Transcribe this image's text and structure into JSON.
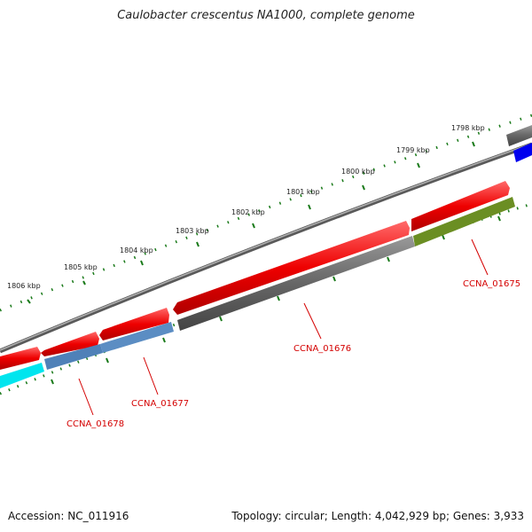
{
  "title": "Caulobacter crescentus NA1000, complete genome",
  "footer": {
    "accession": "Accession: NC_011916",
    "summary": "Topology: circular; Length: 4,042,929 bp; Genes: 3,933"
  },
  "ruler_labels": [
    "1798 kbp",
    "1799 kbp",
    "1800 kbp",
    "1801 kbp",
    "1802 kbp",
    "1803 kbp",
    "1804 kbp",
    "1805 kbp",
    "1806 kbp"
  ],
  "gene_labels": [
    "CCNA_01675",
    "CCNA_01676",
    "CCNA_01677",
    "CCNA_01678"
  ],
  "colors": {
    "forward_cds": "#ee0000",
    "gene_grey": "#666666",
    "gene_steelblue": "#4f81b8",
    "gene_olive": "#6b8e23",
    "gene_cyan": "#00e5ee",
    "gene_blue": "#0000ee",
    "backbone": "#888888",
    "ticks": "#1a7a1a",
    "label": "#d40000"
  }
}
